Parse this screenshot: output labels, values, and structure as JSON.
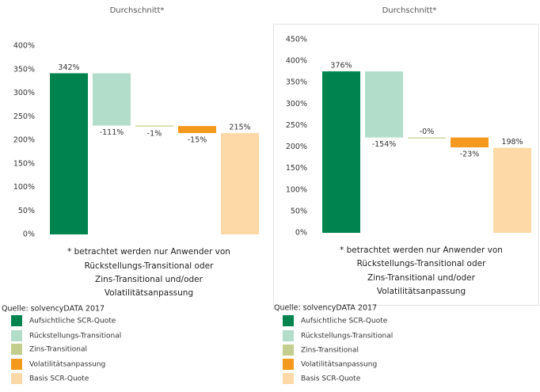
{
  "chart_data": [
    {
      "type": "waterfall",
      "title": "Durchschnitt*",
      "categories": [
        "Aufsichtliche SCR-Quote",
        "Rückstellungs-Transitional",
        "Zins-Transitional",
        "Volatilitätsanpassung",
        "Basis SCR-Quote"
      ],
      "values": [
        342,
        -111,
        -1,
        -15,
        215
      ],
      "value_labels": [
        "342%",
        "-111%",
        "-1%",
        "-15%",
        "215%"
      ],
      "colors": [
        "#00834f",
        "#b3ddcb",
        "#c2cd8e",
        "#f39a1e",
        "#fdd9a8"
      ],
      "ylim": [
        0,
        400
      ],
      "yticks": [
        {
          "value": 0,
          "label": "0%"
        },
        {
          "value": 50,
          "label": "50%"
        },
        {
          "value": 100,
          "label": "100%"
        },
        {
          "value": 150,
          "label": "150%"
        },
        {
          "value": 200,
          "label": "200%"
        },
        {
          "value": 250,
          "label": "250%"
        },
        {
          "value": 300,
          "label": "300%"
        },
        {
          "value": 350,
          "label": "350%"
        },
        {
          "value": 400,
          "label": "400%"
        }
      ],
      "note": [
        "* betrachtet werden nur Anwender von",
        "Rückstellungs-Transitional oder",
        "Zins-Transitional und/oder",
        "Volatilitätsanpassung"
      ],
      "source": "Quelle: solvencyDATA 2017"
    },
    {
      "type": "waterfall",
      "title": "Durchschnitt*",
      "categories": [
        "Aufsichtliche SCR-Quote",
        "Rückstellungs-Transitional",
        "Zins-Transitional",
        "Volatilitätsanpassung",
        "Basis SCR-Quote"
      ],
      "values": [
        376,
        -154,
        0,
        -23,
        198
      ],
      "value_labels": [
        "376%",
        "-154%",
        "-0%",
        "-23%",
        "198%"
      ],
      "colors": [
        "#00834f",
        "#b3ddcb",
        "#c2cd8e",
        "#f39a1e",
        "#fdd9a8"
      ],
      "ylim": [
        0,
        450
      ],
      "yticks": [
        {
          "value": 0,
          "label": "0%"
        },
        {
          "value": 50,
          "label": "50%"
        },
        {
          "value": 100,
          "label": "100%"
        },
        {
          "value": 150,
          "label": "150%"
        },
        {
          "value": 200,
          "label": "200%"
        },
        {
          "value": 250,
          "label": "250%"
        },
        {
          "value": 300,
          "label": "300%"
        },
        {
          "value": 350,
          "label": "350%"
        },
        {
          "value": 400,
          "label": "400%"
        },
        {
          "value": 450,
          "label": "450%"
        }
      ],
      "note": [
        "* betrachtet werden nur Anwender von",
        "Rückstellungs-Transitional oder",
        "Zins-Transitional und/oder",
        "Volatilitätsanpassung"
      ],
      "source": "Quelle: solvencyDATA 2017"
    }
  ]
}
